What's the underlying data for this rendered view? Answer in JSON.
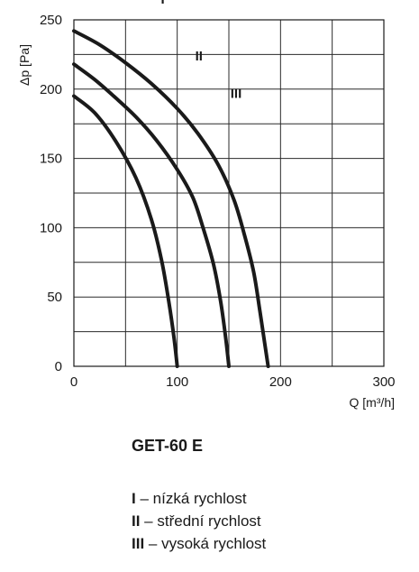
{
  "chart_data": {
    "type": "line",
    "ylabel": "Δp [Pa]",
    "xlabel": "Q [m³/h]",
    "xlim": [
      0,
      300
    ],
    "ylim": [
      0,
      250
    ],
    "x_ticks": [
      "0",
      "100",
      "200",
      "300"
    ],
    "y_ticks": [
      "0",
      "50",
      "100",
      "150",
      "200",
      "250"
    ],
    "grid": true,
    "series": [
      {
        "name": "I",
        "points": [
          [
            0,
            195
          ],
          [
            20,
            183
          ],
          [
            40,
            163
          ],
          [
            60,
            136
          ],
          [
            75,
            106
          ],
          [
            85,
            76
          ],
          [
            92,
            46
          ],
          [
            97,
            20
          ],
          [
            100,
            0
          ]
        ]
      },
      {
        "name": "II",
        "points": [
          [
            0,
            218
          ],
          [
            20,
            207
          ],
          [
            40,
            194
          ],
          [
            60,
            180
          ],
          [
            80,
            163
          ],
          [
            100,
            142
          ],
          [
            115,
            122
          ],
          [
            125,
            100
          ],
          [
            135,
            74
          ],
          [
            142,
            47
          ],
          [
            147,
            20
          ],
          [
            150,
            0
          ]
        ]
      },
      {
        "name": "III",
        "points": [
          [
            0,
            242
          ],
          [
            25,
            232
          ],
          [
            50,
            219
          ],
          [
            75,
            204
          ],
          [
            100,
            186
          ],
          [
            120,
            168
          ],
          [
            140,
            145
          ],
          [
            155,
            120
          ],
          [
            165,
            95
          ],
          [
            174,
            68
          ],
          [
            180,
            40
          ],
          [
            185,
            15
          ],
          [
            188,
            0
          ]
        ]
      }
    ]
  },
  "model": "GET-60 E",
  "legend": [
    {
      "key": "I",
      "text": " – nízká rychlost"
    },
    {
      "key": "II",
      "text": " – střední rychlost"
    },
    {
      "key": "III",
      "text": " – vysoká rychlost"
    }
  ]
}
